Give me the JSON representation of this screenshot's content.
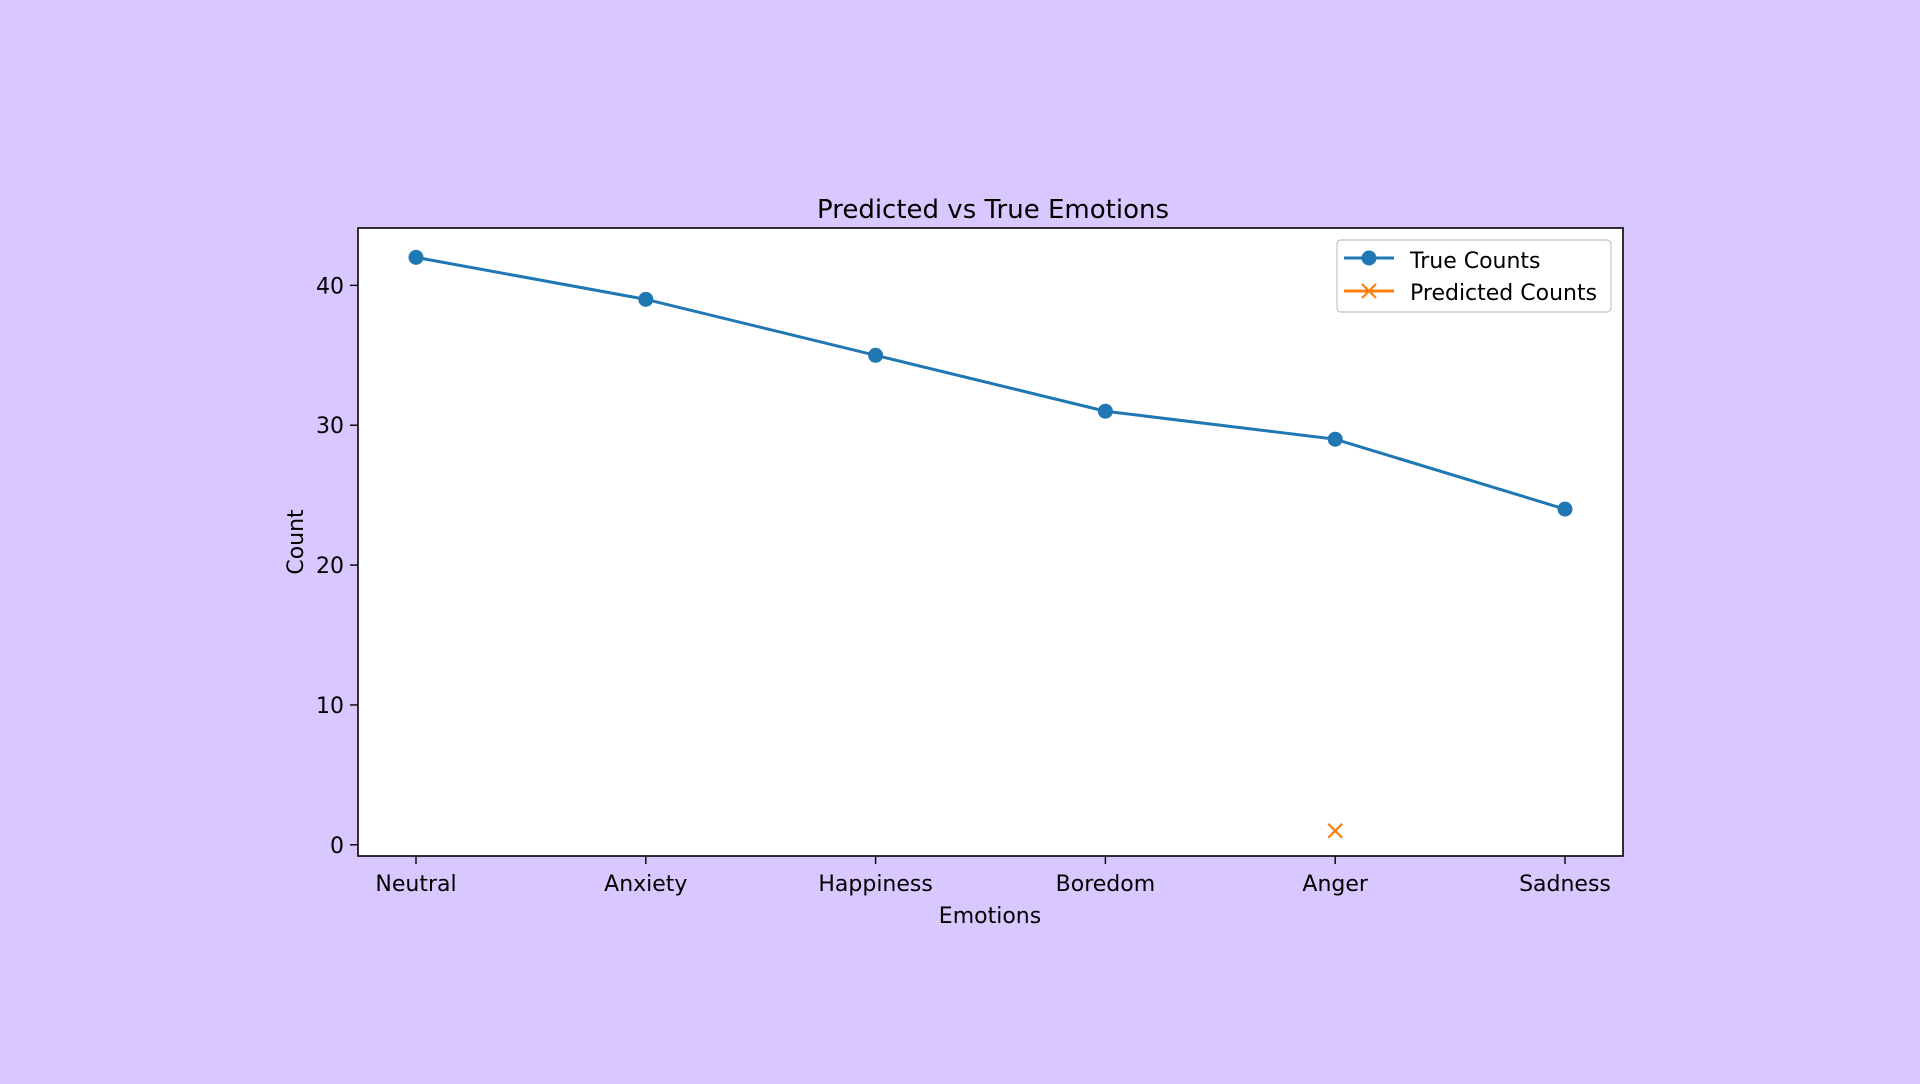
{
  "page": {
    "background_color": "#d9c8ff"
  },
  "chart_data": {
    "type": "line",
    "title": "Predicted vs True Emotions",
    "xlabel": "Emotions",
    "ylabel": "Count",
    "categories": [
      "Neutral",
      "Anxiety",
      "Happiness",
      "Boredom",
      "Anger",
      "Sadness"
    ],
    "ylim": [
      -0.8,
      44.1
    ],
    "yticks": [
      0,
      10,
      20,
      30,
      40
    ],
    "grid": false,
    "legend_position": "top-right",
    "series": [
      {
        "name": "True Counts",
        "color": "#1f77b4",
        "marker": "circle",
        "line": true,
        "values": [
          42,
          39,
          35,
          31,
          29,
          24
        ]
      },
      {
        "name": "Predicted Counts",
        "color": "#ff7f0e",
        "marker": "x",
        "line": true,
        "values": [
          null,
          null,
          null,
          null,
          1,
          null
        ]
      }
    ]
  }
}
